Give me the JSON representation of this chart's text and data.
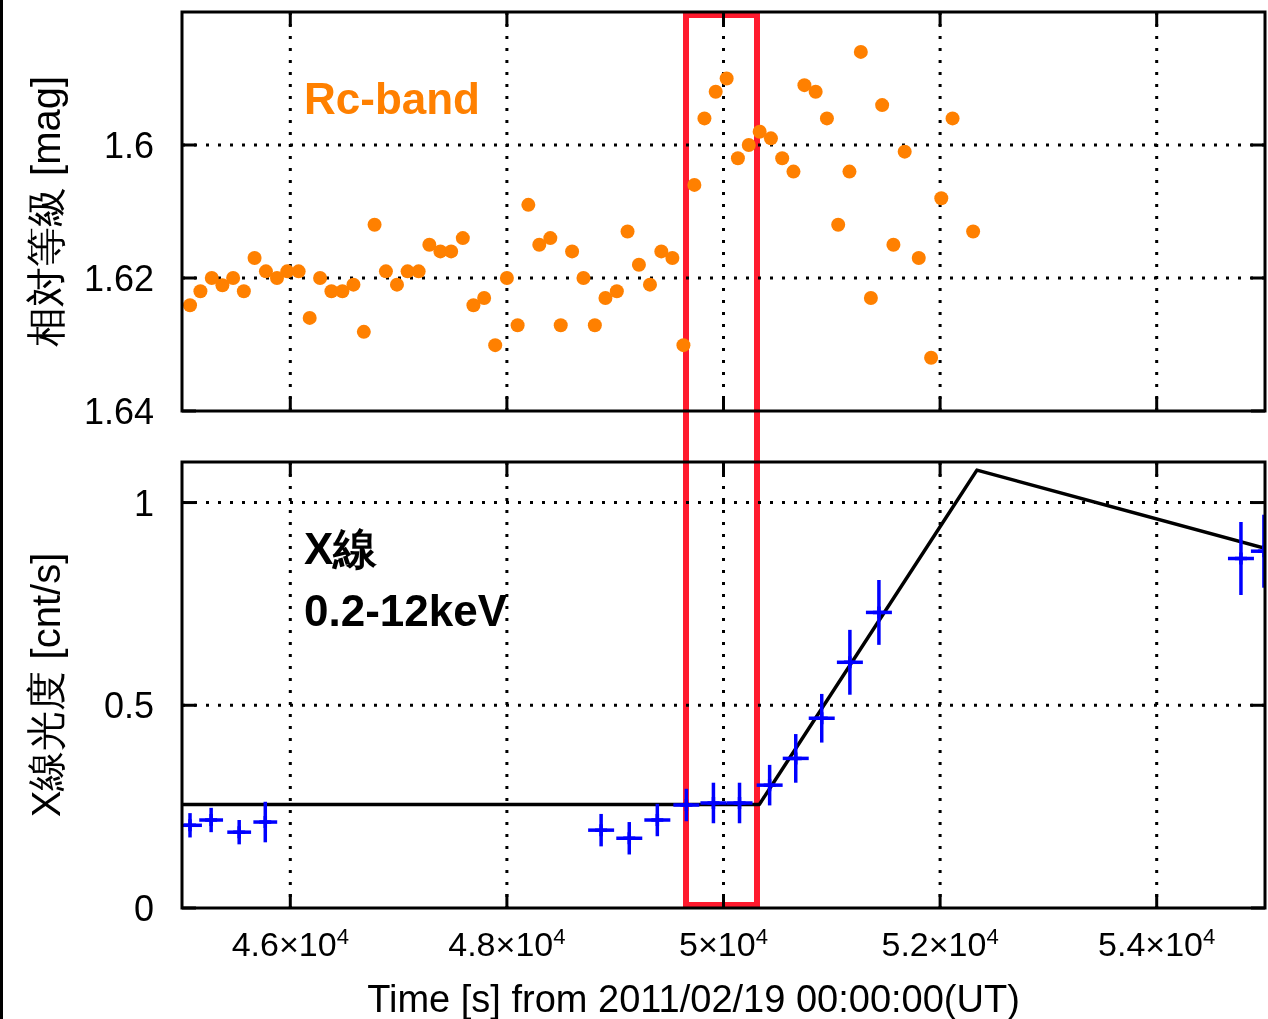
{
  "chart_data": [
    {
      "type": "scatter",
      "ylabel": "相対等級 [mag]",
      "annotations": [
        "Rc-band"
      ],
      "xlim": [
        45000,
        55000
      ],
      "xticks": [
        {
          "value": 46000,
          "label": null
        },
        {
          "value": 48000,
          "label": null
        },
        {
          "value": 50000,
          "label": null
        },
        {
          "value": 52000,
          "label": null
        },
        {
          "value": 54000,
          "label": null
        }
      ],
      "ylim": [
        1.64,
        1.58
      ],
      "yticks": [
        1.6,
        1.62,
        1.64
      ],
      "grid": true,
      "tick_labels": "y",
      "marker": "circle",
      "series": [
        {
          "color": "#ff8000",
          "x": [
            45074,
            45170,
            45275,
            45373,
            45472,
            45571,
            45670,
            45775,
            45877,
            45972,
            46077,
            46179,
            46275,
            46380,
            46481,
            46583,
            46679,
            46778,
            46883,
            46985,
            47083,
            47185,
            47284,
            47386,
            47485,
            47593,
            47691,
            47790,
            47892,
            48000,
            48099,
            48198,
            48299,
            48401,
            48497,
            48602,
            48707,
            48812,
            48910,
            49015,
            49114,
            49219,
            49321,
            49426,
            49528,
            49630,
            49731,
            49824,
            49928,
            50029,
            50133,
            50233,
            50334,
            50438,
            50542,
            50646,
            50747,
            50851,
            50955,
            51059,
            51163,
            51268,
            51361,
            51465,
            51569,
            51673,
            51803,
            51917,
            52011,
            52115,
            52305
          ],
          "values": [
            1.6241,
            1.622,
            1.62,
            1.6211,
            1.62,
            1.622,
            1.617,
            1.619,
            1.62,
            1.619,
            1.619,
            1.626,
            1.62,
            1.622,
            1.622,
            1.621,
            1.6281,
            1.612,
            1.619,
            1.621,
            1.619,
            1.619,
            1.615,
            1.616,
            1.616,
            1.614,
            1.6241,
            1.623,
            1.6301,
            1.62,
            1.6271,
            1.609,
            1.615,
            1.614,
            1.6271,
            1.616,
            1.62,
            1.6271,
            1.623,
            1.622,
            1.613,
            1.618,
            1.621,
            1.616,
            1.617,
            1.6301,
            1.606,
            1.596,
            1.592,
            1.59,
            1.602,
            1.6,
            1.598,
            1.599,
            1.602,
            1.604,
            1.591,
            1.592,
            1.596,
            1.612,
            1.604,
            1.586,
            1.623,
            1.594,
            1.615,
            1.601,
            1.617,
            1.632,
            1.608,
            1.596,
            1.613
          ]
        }
      ]
    },
    {
      "type": "scatter",
      "xlabel": "Time [s] from 2011/02/19 00:00:00(UT)",
      "ylabel": "X線光度 [cnt/s]",
      "annotations": [
        "X線",
        "0.2-12keV"
      ],
      "xlim": [
        45000,
        55000
      ],
      "xticks": [
        {
          "value": 46000,
          "label": "4.6×10$^{4}$"
        },
        {
          "value": 48000,
          "label": "4.8×10$^{4}$"
        },
        {
          "value": 50000,
          "label": "5×10$^{4}$"
        },
        {
          "value": 52000,
          "label": "5.2×10$^{4}$"
        },
        {
          "value": 54000,
          "label": "5.4×10$^{4}$"
        }
      ],
      "ylim": [
        0,
        1.1
      ],
      "yticks": [
        0,
        0.5,
        1
      ],
      "grid": true,
      "series": [
        {
          "color": "#0000ff",
          "marker": "cross",
          "x": [
            45074,
            45269,
            45528,
            45769,
            48870,
            49130,
            49389,
            49657,
            49907,
            50148,
            50426,
            50667,
            50907,
            51167,
            51435,
            54778,
            54990
          ],
          "values": [
            0.204,
            0.217,
            0.187,
            0.212,
            0.192,
            0.172,
            0.217,
            0.254,
            0.259,
            0.259,
            0.303,
            0.369,
            0.468,
            0.606,
            0.729,
            0.862,
            0.88
          ],
          "errors": [
            0.03,
            0.03,
            0.03,
            0.05,
            0.04,
            0.04,
            0.04,
            0.04,
            0.05,
            0.05,
            0.05,
            0.06,
            0.06,
            0.08,
            0.08,
            0.09,
            0.09
          ],
          "xerrors": [
            110,
            110,
            110,
            110,
            120,
            120,
            120,
            120,
            120,
            120,
            120,
            120,
            120,
            120,
            120,
            120,
            120
          ]
        },
        {
          "type": "line",
          "color": "#000000",
          "line_style": "solid",
          "x": [
            45000,
            50330,
            52340,
            55000
          ],
          "values": [
            0.255,
            0.255,
            1.08,
            0.887
          ]
        }
      ]
    }
  ]
}
